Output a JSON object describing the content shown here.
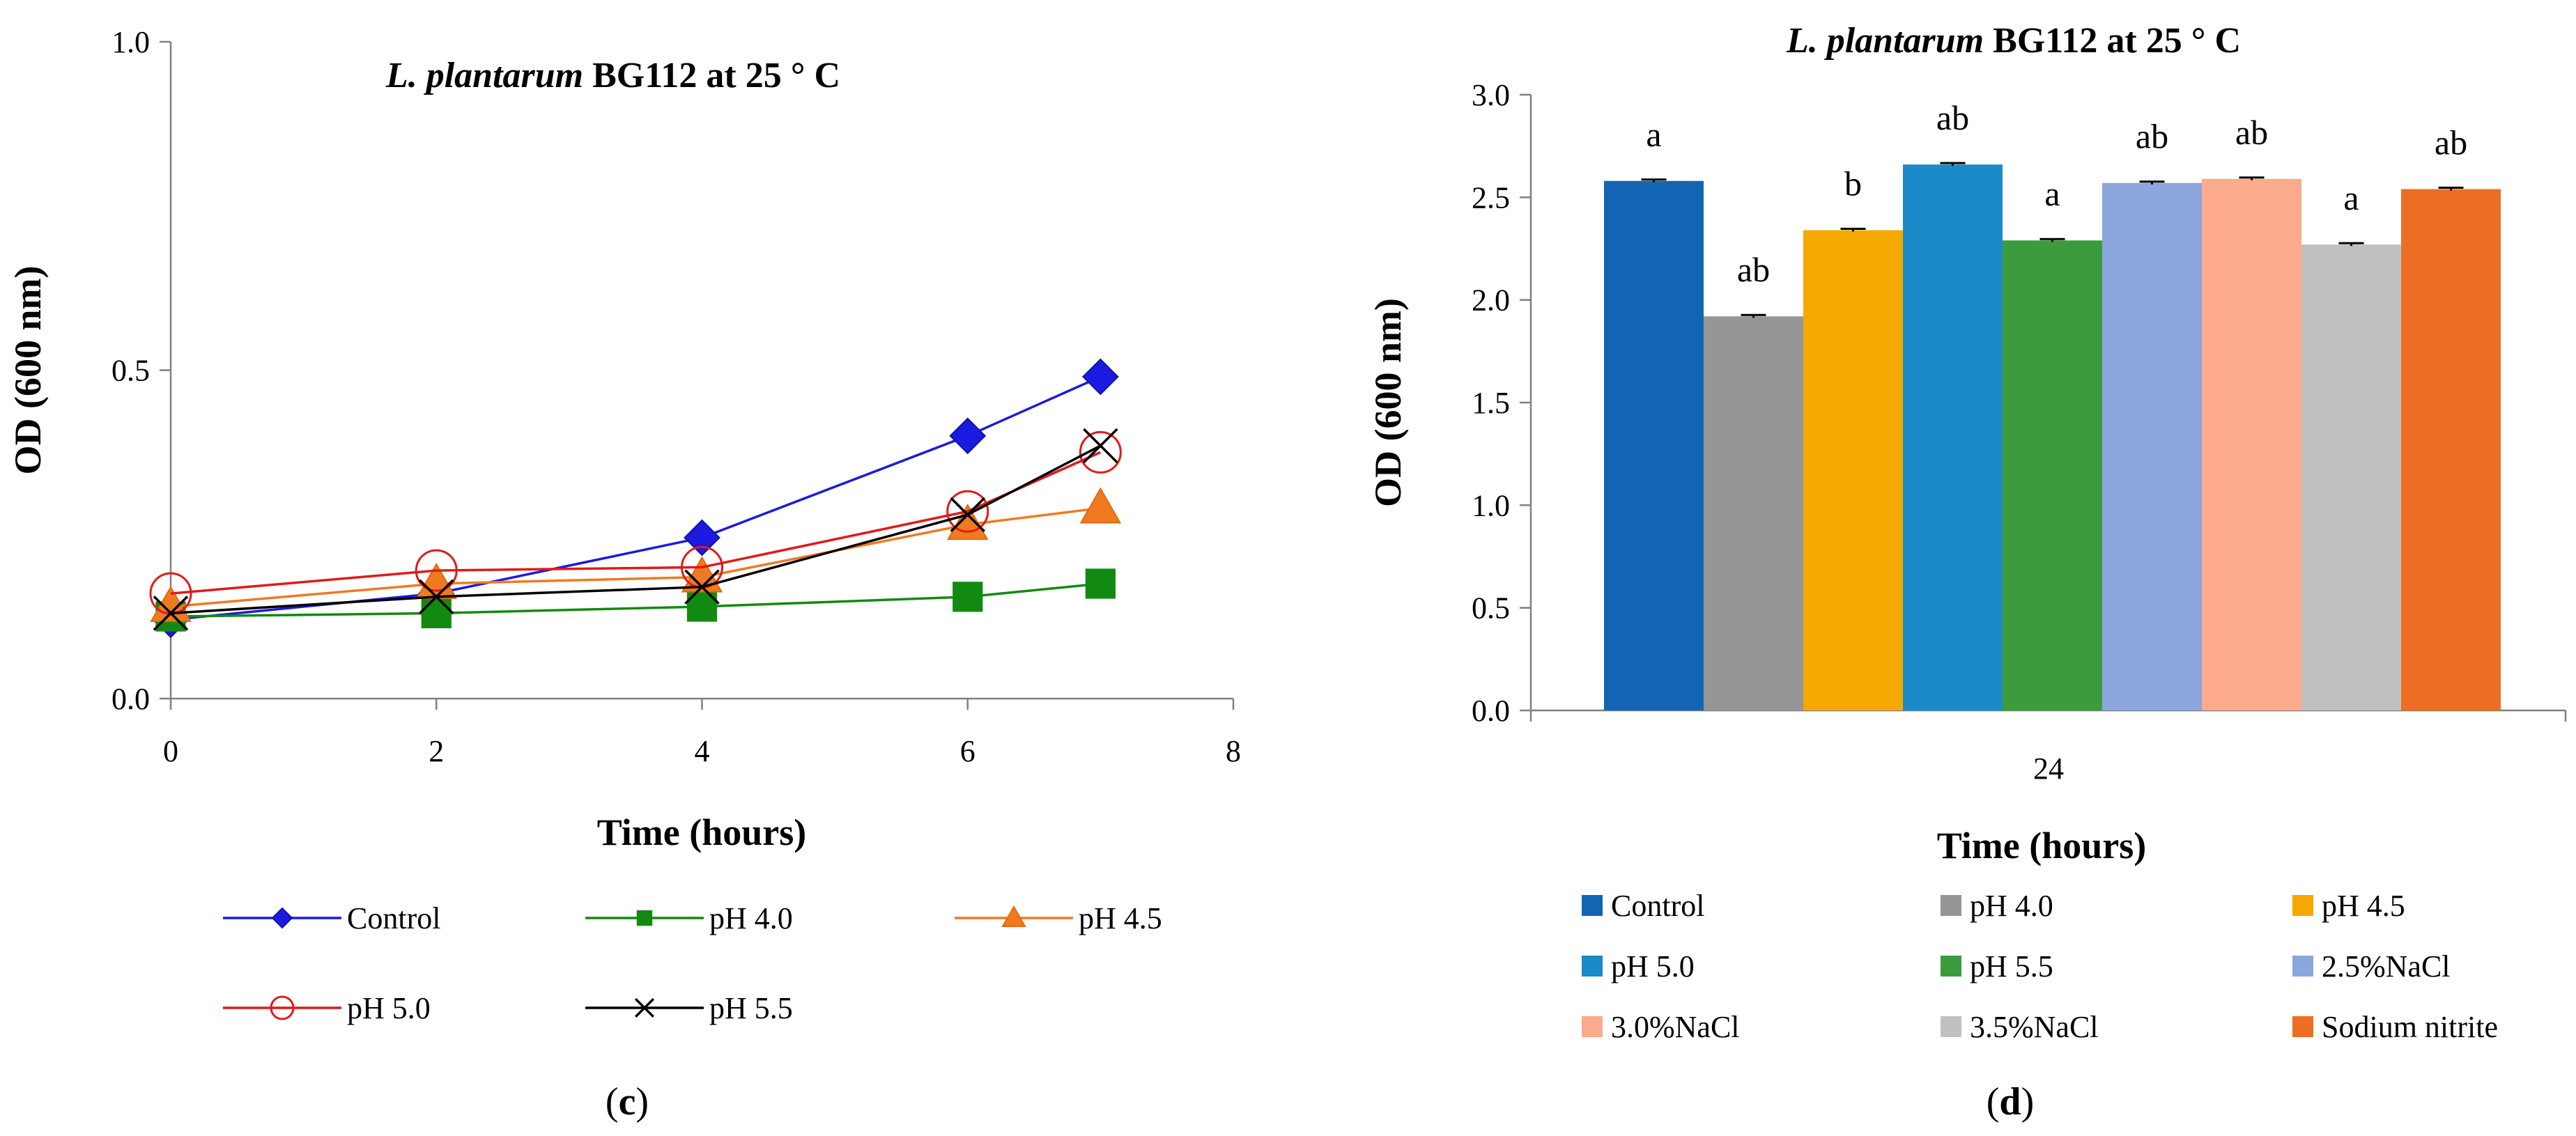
{
  "chart_data": [
    {
      "type": "line",
      "panel_label": "(c)",
      "panel_letter": "c",
      "title_italic": "L. plantarum",
      "title_rest": " BG112 at 25 ° C",
      "xlabel": "Time (hours)",
      "ylabel": "OD (600 nm)",
      "xlim": [
        0,
        8
      ],
      "ylim": [
        0,
        1.0
      ],
      "x_ticks": [
        "0",
        "2",
        "4",
        "6",
        "8"
      ],
      "y_ticks": [
        "0.0",
        "0.5",
        "1.0"
      ],
      "x": [
        0,
        2,
        4,
        6,
        7
      ],
      "series": [
        {
          "name": "Control",
          "color": "#1a1ae0",
          "marker": "diamond",
          "values": [
            0.12,
            0.16,
            0.245,
            0.4,
            0.49
          ]
        },
        {
          "name": "pH 4.0",
          "color": "#128a12",
          "marker": "square",
          "values": [
            0.125,
            0.13,
            0.14,
            0.155,
            0.175
          ]
        },
        {
          "name": "pH 4.5",
          "color": "#f07a20",
          "marker": "triangle",
          "values": [
            0.14,
            0.175,
            0.185,
            0.265,
            0.29
          ]
        },
        {
          "name": "pH 5.0",
          "color": "#e01a1a",
          "marker": "circle",
          "values": [
            0.16,
            0.195,
            0.2,
            0.285,
            0.375
          ]
        },
        {
          "name": "pH 5.5",
          "color": "#000000",
          "marker": "x",
          "values": [
            0.13,
            0.155,
            0.17,
            0.28,
            0.385
          ]
        }
      ]
    },
    {
      "type": "bar",
      "panel_label": "(d)",
      "panel_letter": "d",
      "title_italic": "L. plantarum",
      "title_rest": " BG112 at 25 ° C",
      "xlabel": "Time (hours)",
      "ylabel": "OD (600 nm)",
      "ylim": [
        0,
        3.0
      ],
      "y_ticks": [
        "0.0",
        "0.5",
        "1.0",
        "1.5",
        "2.0",
        "2.5",
        "3.0"
      ],
      "categories": [
        "24"
      ],
      "series": [
        {
          "name": "Control",
          "color": "#1464b4",
          "value": 2.58,
          "letter": "a"
        },
        {
          "name": "pH 4.0",
          "color": "#969696",
          "value": 1.92,
          "letter": "ab"
        },
        {
          "name": "pH 4.5",
          "color": "#f5a800",
          "value": 2.34,
          "letter": "b"
        },
        {
          "name": "pH 5.0",
          "color": "#1a8ac8",
          "value": 2.66,
          "letter": "ab"
        },
        {
          "name": "pH 5.5",
          "color": "#3c9c3c",
          "value": 2.29,
          "letter": "a"
        },
        {
          "name": "2.5%NaCl",
          "color": "#8aa6dc",
          "value": 2.57,
          "letter": "ab"
        },
        {
          "name": "3.0%NaCl",
          "color": "#fcaa8c",
          "value": 2.59,
          "letter": "ab"
        },
        {
          "name": "3.5%NaCl",
          "color": "#c0c0c0",
          "value": 2.27,
          "letter": "a"
        },
        {
          "name": "Sodium nitrite",
          "color": "#ec6e22",
          "value": 2.54,
          "letter": "ab"
        }
      ]
    }
  ]
}
